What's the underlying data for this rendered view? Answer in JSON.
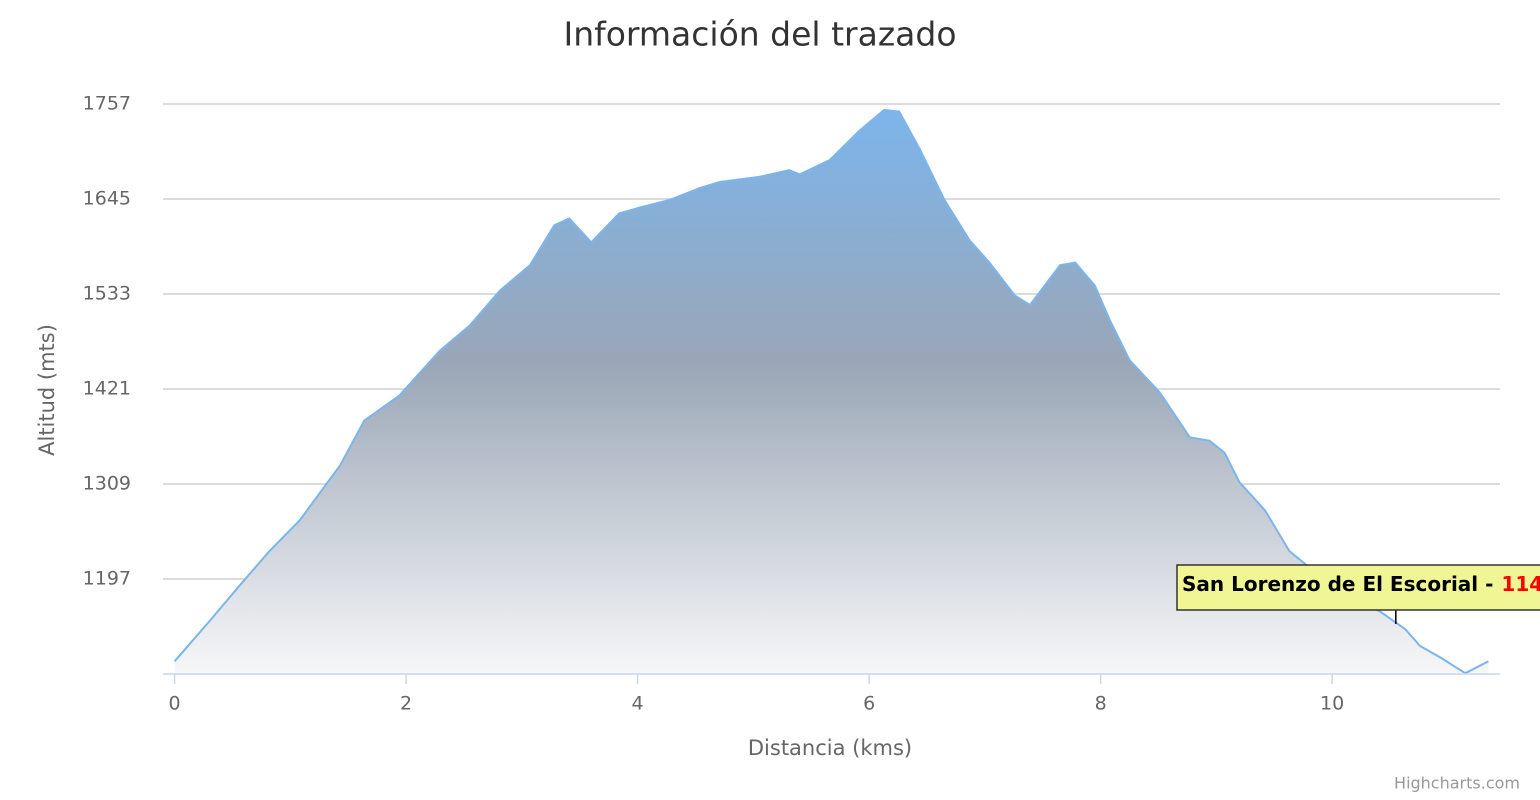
{
  "chart_data": {
    "type": "area",
    "title": "Información del trazado",
    "x_label": "Distancia (kms)",
    "y_label": "Altitud (mts)",
    "credit": "Highcharts.com",
    "color": "#7cb5ec",
    "x": [
      0,
      0.3,
      0.56,
      0.82,
      1.08,
      1.43,
      1.64,
      1.94,
      2.29,
      2.55,
      2.81,
      3.07,
      3.28,
      3.41,
      3.6,
      3.84,
      4.02,
      4.28,
      4.54,
      4.71,
      5.05,
      5.31,
      5.4,
      5.66,
      5.92,
      6.13,
      6.26,
      6.44,
      6.65,
      6.87,
      7.04,
      7.26,
      7.39,
      7.65,
      7.78,
      7.95,
      8.08,
      8.25,
      8.51,
      8.77,
      8.94,
      9.07,
      9.2,
      9.42,
      9.63,
      9.89,
      10.15,
      10.41,
      10.63,
      10.76,
      10.94,
      11.15,
      11.35
    ],
    "values": [
      1100,
      1147,
      1189,
      1230,
      1266,
      1331,
      1384,
      1413,
      1466,
      1496,
      1537,
      1567,
      1614,
      1622,
      1594,
      1628,
      1635,
      1644,
      1658,
      1665,
      1671,
      1679,
      1674,
      1691,
      1726,
      1750,
      1748,
      1703,
      1644,
      1596,
      1570,
      1531,
      1520,
      1567,
      1570,
      1543,
      1502,
      1455,
      1417,
      1364,
      1360,
      1346,
      1311,
      1278,
      1230,
      1201,
      1173,
      1159,
      1138,
      1118,
      1104,
      1086,
      1100
    ],
    "xlim": [
      -0.1,
      11.45
    ],
    "ylim": [
      1085,
      1757
    ],
    "xticks": [
      0,
      2,
      4,
      6,
      8,
      10
    ],
    "yticks": [
      1197,
      1309,
      1421,
      1533,
      1645,
      1757
    ],
    "grid": true,
    "annotation": {
      "text": "San Lorenzo de El Escorial -",
      "value_label": "114",
      "x": 10.55,
      "y": 1144
    }
  }
}
